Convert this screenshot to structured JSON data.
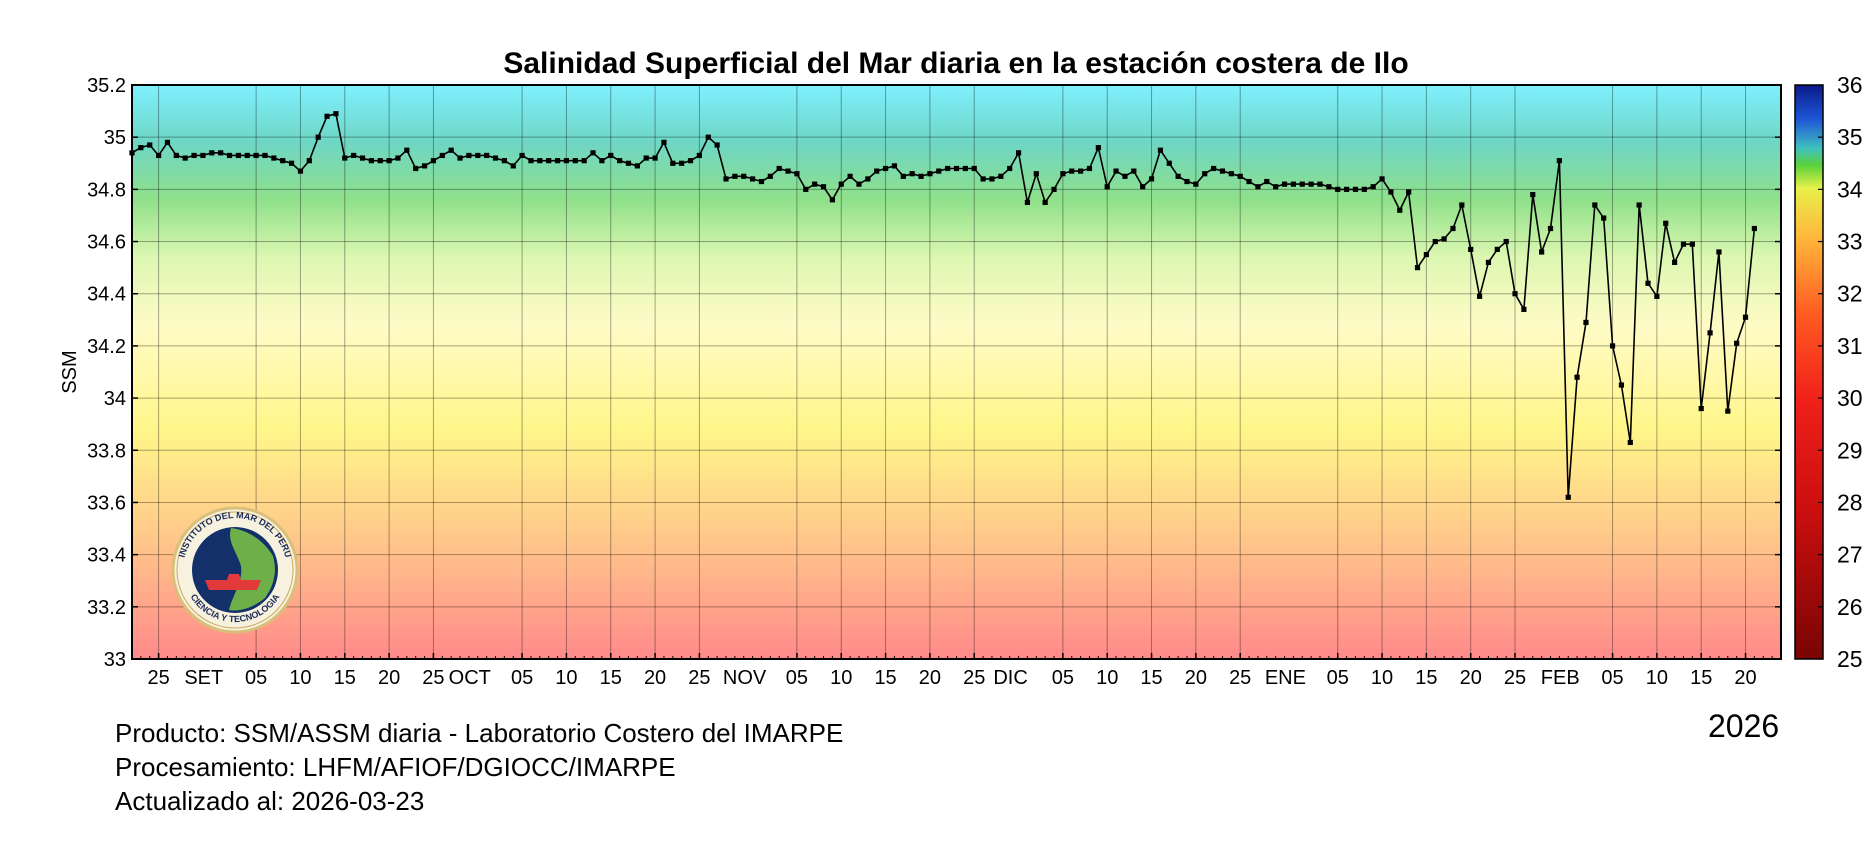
{
  "chart_data": {
    "type": "line",
    "title": "Salinidad Superficial del Mar diaria en la estación costera de Ilo",
    "xlabel": "",
    "ylabel": "SSM",
    "ylim": [
      33,
      35.2
    ],
    "yticks": [
      "35.2",
      "35",
      "34.8",
      "34.6",
      "34.4",
      "34.2",
      "34",
      "33.8",
      "33.6",
      "33.4",
      "33.2",
      "33"
    ],
    "xlim_days": [
      0,
      186
    ],
    "x_start": "2025-08-22",
    "x_end": "2026-02-23",
    "x_tick_labels": [
      "25",
      "SET",
      "05",
      "10",
      "15",
      "20",
      "25",
      "OCT",
      "05",
      "10",
      "15",
      "20",
      "25",
      "NOV",
      "05",
      "10",
      "15",
      "20",
      "25",
      "DIC",
      "05",
      "10",
      "15",
      "20",
      "25",
      "ENE",
      "05",
      "10",
      "15",
      "20",
      "25",
      "FEB",
      "05",
      "10",
      "15",
      "20"
    ],
    "grid": true,
    "marker": "square",
    "line_color": "#000000",
    "background_gradient": [
      {
        "stop": 0.0,
        "color": "#7ff0ff"
      },
      {
        "stop": 0.1,
        "color": "#6ed6c4"
      },
      {
        "stop": 0.2,
        "color": "#8fe08a"
      },
      {
        "stop": 0.3,
        "color": "#dcf7b2"
      },
      {
        "stop": 0.42,
        "color": "#fffbc6"
      },
      {
        "stop": 0.6,
        "color": "#fff68a"
      },
      {
        "stop": 0.78,
        "color": "#ffca8a"
      },
      {
        "stop": 1.0,
        "color": "#ff8a8a"
      }
    ],
    "colorbar": {
      "ticks": [
        "36",
        "35",
        "34",
        "33",
        "32",
        "31",
        "30",
        "29",
        "28",
        "27",
        "26",
        "25"
      ],
      "range": [
        25,
        36
      ]
    },
    "series": [
      {
        "values": [
          34.94,
          34.96,
          34.97,
          34.93,
          34.98,
          34.93,
          34.92,
          34.93,
          34.93,
          34.94,
          34.94,
          34.93,
          34.93,
          34.93,
          34.93,
          34.93,
          34.92,
          34.91,
          34.9,
          34.87,
          34.91,
          35.0,
          35.08,
          35.09,
          34.92,
          34.93,
          34.92,
          34.91,
          34.91,
          34.91,
          34.92,
          34.95,
          34.88,
          34.89,
          34.91,
          34.93,
          34.95,
          34.92,
          34.93,
          34.93,
          34.93,
          34.92,
          34.91,
          34.89,
          34.93,
          34.91,
          34.91,
          34.91,
          34.91,
          34.91,
          34.91,
          34.91,
          34.94,
          34.91,
          34.93,
          34.91,
          34.9,
          34.89,
          34.92,
          34.92,
          34.98,
          34.9,
          34.9,
          34.91,
          34.93,
          35.0,
          34.97,
          34.84,
          34.85,
          34.85,
          34.84,
          34.83,
          34.85,
          34.88,
          34.87,
          34.86,
          34.8,
          34.82,
          34.81,
          34.76,
          34.82,
          34.85,
          34.82,
          34.84,
          34.87,
          34.88,
          34.89,
          34.85,
          34.86,
          34.85,
          34.86,
          34.87,
          34.88,
          34.88,
          34.88,
          34.88,
          34.84,
          34.84,
          34.85,
          34.88,
          34.94,
          34.75,
          34.86,
          34.75,
          34.8,
          34.86,
          34.87,
          34.87,
          34.88,
          34.96,
          34.81,
          34.87,
          34.85,
          34.87,
          34.81,
          34.84,
          34.95,
          34.9,
          34.85,
          34.83,
          34.82,
          34.86,
          34.88,
          34.87,
          34.86,
          34.85,
          34.83,
          34.81,
          34.83,
          34.81,
          34.82,
          34.82,
          34.82,
          34.82,
          34.82,
          34.81,
          34.8,
          34.8,
          34.8,
          34.8,
          34.81,
          34.84,
          34.79,
          34.72,
          34.79,
          34.5,
          34.55,
          34.6,
          34.61,
          34.65,
          34.74,
          34.57,
          34.39,
          34.52,
          34.57,
          34.6,
          34.4,
          34.34,
          34.78,
          34.56,
          34.65,
          34.91,
          33.62,
          34.08,
          34.29,
          34.74,
          34.69,
          34.2,
          34.05,
          33.83,
          34.74,
          34.44,
          34.39,
          34.67,
          34.52,
          34.59,
          34.59,
          33.96,
          34.25,
          34.56,
          33.95,
          34.21,
          34.31,
          34.65
        ]
      }
    ]
  },
  "footer": {
    "producto": "Producto: SSM/ASSM diaria - Laboratorio Costero del IMARPE",
    "procesamiento": "Procesamiento: LHFM/AFIOF/DGIOCC/IMARPE",
    "actualizado": "Actualizado al: 2026-03-23",
    "year": "2026"
  },
  "logo": {
    "name": "imarpe-logo-icon",
    "text_top": "INSTITUTO DEL MAR DEL PERU",
    "text_bottom": "CIENCIA Y TECNOLOGIA"
  }
}
